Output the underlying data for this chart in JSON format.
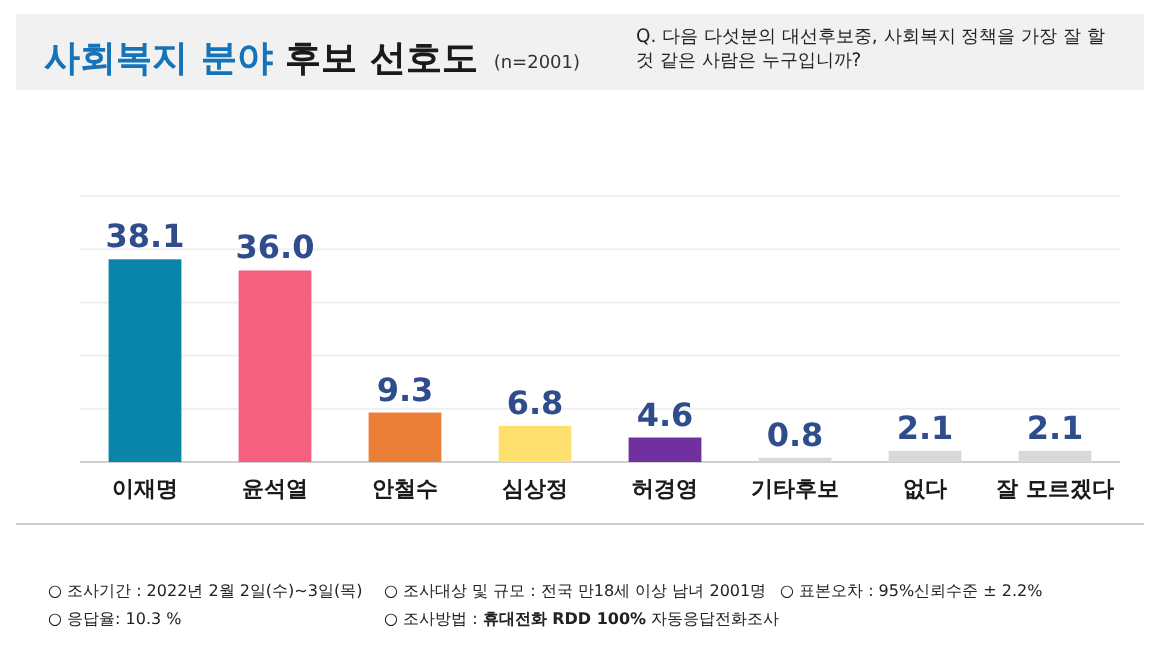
{
  "chart_data": {
    "type": "bar",
    "title": "사회복지 분야 후보 선호도",
    "subtitle": "(n=2001)",
    "categories": [
      "이재명",
      "윤석열",
      "안철수",
      "심상정",
      "허경영",
      "기타후보",
      "없다",
      "잘 모르겠다"
    ],
    "values": [
      38.1,
      36.0,
      9.3,
      6.8,
      4.6,
      0.8,
      2.1,
      2.1
    ],
    "colors": [
      "#0a85aa",
      "#f4607e",
      "#ec7f38",
      "#fde06d",
      "#7030a0",
      "#d9d9d9",
      "#d9d9d9",
      "#d9d9d9"
    ],
    "value_labels": [
      "38.1",
      "36.0",
      "9.3",
      "6.8",
      "4.6",
      "0.8",
      "2.1",
      "2.1"
    ],
    "ylim": [
      0,
      50
    ],
    "yticks": [
      {
        "value": 0,
        "label": null
      },
      {
        "value": 10,
        "label": null
      },
      {
        "value": 20,
        "label": null
      },
      {
        "value": 30,
        "label": null
      },
      {
        "value": 40,
        "label": null
      },
      {
        "value": 50,
        "label": null
      }
    ],
    "grid": "y",
    "annotations": [
      "Q. 다음 다섯분의 대선후보중, 사회복지 정책을 가장 잘 할 것 같은 사람은 누구입니까?",
      "○ 조사기간 : 2022년 2월 2일(수)~3일(목)",
      "○ 조사대상 및 규모 : 전국 만18세 이상 남녀 2001명",
      "○ 표본오차 : 95%신뢰수준 ± 2.2%",
      "○ 응답율: 10.3 %",
      "○ 조사방법 : **휴대전화 RDD 100%** 자동응답전화조사"
    ]
  }
}
